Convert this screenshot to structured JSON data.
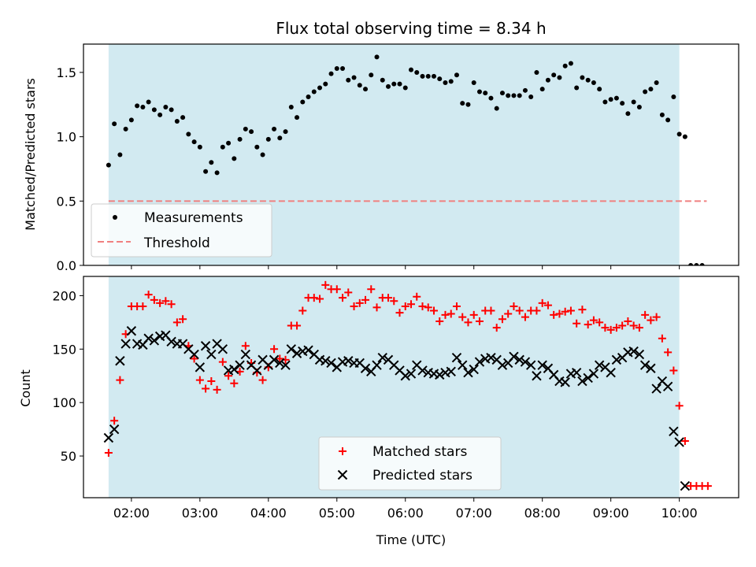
{
  "colors": {
    "band": "#add8e6",
    "measurement": "#000000",
    "threshold": "#f08080",
    "matched": "#ff0000",
    "predicted": "#000000"
  },
  "chart_data": [
    {
      "type": "scatter",
      "title": "Flux total observing time = 8.34 h",
      "xlabel": "",
      "ylabel": "Matched/Predicted stars",
      "xlim": [
        "01:18",
        "10:52"
      ],
      "ylim": [
        0,
        1.72
      ],
      "yticks": [
        0.0,
        0.5,
        1.0,
        1.5
      ],
      "ytick_labels": [
        "0.0",
        "0.5",
        "1.0",
        "1.5"
      ],
      "band": [
        "01:40",
        "10:00"
      ],
      "legend": {
        "placement": "lower-left",
        "entries": [
          "Measurements",
          "Threshold"
        ]
      },
      "threshold": {
        "name": "Threshold",
        "y": 0.5,
        "x": [
          "01:40",
          "10:24"
        ]
      },
      "series": [
        {
          "name": "Measurements",
          "marker": "dot",
          "x": [
            "01:40",
            "01:45",
            "01:50",
            "01:55",
            "02:00",
            "02:05",
            "02:10",
            "02:15",
            "02:20",
            "02:25",
            "02:30",
            "02:35",
            "02:40",
            "02:45",
            "02:50",
            "02:55",
            "03:00",
            "03:05",
            "03:10",
            "03:15",
            "03:20",
            "03:25",
            "03:30",
            "03:35",
            "03:40",
            "03:45",
            "03:50",
            "03:55",
            "04:00",
            "04:05",
            "04:10",
            "04:15",
            "04:20",
            "04:25",
            "04:30",
            "04:35",
            "04:40",
            "04:45",
            "04:50",
            "04:55",
            "05:00",
            "05:05",
            "05:10",
            "05:15",
            "05:20",
            "05:25",
            "05:30",
            "05:35",
            "05:40",
            "05:45",
            "05:50",
            "05:55",
            "06:00",
            "06:05",
            "06:10",
            "06:15",
            "06:20",
            "06:25",
            "06:30",
            "06:35",
            "06:40",
            "06:45",
            "06:50",
            "06:55",
            "07:00",
            "07:05",
            "07:10",
            "07:15",
            "07:20",
            "07:25",
            "07:30",
            "07:35",
            "07:40",
            "07:45",
            "07:50",
            "07:55",
            "08:00",
            "08:05",
            "08:10",
            "08:15",
            "08:20",
            "08:25",
            "08:30",
            "08:35",
            "08:40",
            "08:45",
            "08:50",
            "08:55",
            "09:00",
            "09:05",
            "09:10",
            "09:15",
            "09:20",
            "09:25",
            "09:30",
            "09:35",
            "09:40",
            "09:45",
            "09:50",
            "09:55",
            "10:00",
            "10:05",
            "10:10",
            "10:15",
            "10:20"
          ],
          "y": [
            0.78,
            1.1,
            0.86,
            1.06,
            1.13,
            1.24,
            1.23,
            1.27,
            1.21,
            1.17,
            1.23,
            1.21,
            1.12,
            1.15,
            1.02,
            0.96,
            0.92,
            0.73,
            0.8,
            0.72,
            0.92,
            0.95,
            0.83,
            0.98,
            1.06,
            1.04,
            0.92,
            0.86,
            0.98,
            1.06,
            0.99,
            1.04,
            1.23,
            1.15,
            1.27,
            1.31,
            1.35,
            1.38,
            1.41,
            1.49,
            1.53,
            1.53,
            1.44,
            1.46,
            1.4,
            1.37,
            1.48,
            1.62,
            1.44,
            1.39,
            1.41,
            1.41,
            1.38,
            1.52,
            1.5,
            1.47,
            1.47,
            1.47,
            1.45,
            1.42,
            1.43,
            1.48,
            1.26,
            1.25,
            1.42,
            1.35,
            1.34,
            1.3,
            1.22,
            1.34,
            1.32,
            1.32,
            1.32,
            1.36,
            1.31,
            1.5,
            1.37,
            1.44,
            1.48,
            1.46,
            1.55,
            1.57,
            1.38,
            1.46,
            1.44,
            1.42,
            1.37,
            1.27,
            1.29,
            1.3,
            1.26,
            1.18,
            1.27,
            1.23,
            1.35,
            1.37,
            1.42,
            1.17,
            1.13,
            1.31,
            1.02,
            1.0,
            0.0,
            0.0,
            0.0
          ]
        }
      ]
    },
    {
      "type": "scatter",
      "title": "",
      "xlabel": "Time (UTC)",
      "ylabel": "Count",
      "xlim": [
        "01:18",
        "10:52"
      ],
      "ylim": [
        11,
        218
      ],
      "yticks": [
        50,
        100,
        150,
        200
      ],
      "ytick_labels": [
        "50",
        "100",
        "150",
        "200"
      ],
      "xticks": [
        "02:00",
        "03:00",
        "04:00",
        "05:00",
        "06:00",
        "07:00",
        "08:00",
        "09:00",
        "10:00"
      ],
      "xtick_labels": [
        "02:00",
        "03:00",
        "04:00",
        "05:00",
        "06:00",
        "07:00",
        "08:00",
        "09:00",
        "10:00"
      ],
      "band": [
        "01:40",
        "10:00"
      ],
      "legend": {
        "placement": "lower-center",
        "entries": [
          "Matched stars",
          "Predicted stars"
        ]
      },
      "series": [
        {
          "name": "Matched stars",
          "marker": "plus",
          "x": [
            "01:40",
            "01:45",
            "01:50",
            "01:55",
            "02:00",
            "02:05",
            "02:10",
            "02:15",
            "02:20",
            "02:25",
            "02:30",
            "02:35",
            "02:40",
            "02:45",
            "02:50",
            "02:55",
            "03:00",
            "03:05",
            "03:10",
            "03:15",
            "03:20",
            "03:25",
            "03:30",
            "03:35",
            "03:40",
            "03:45",
            "03:50",
            "03:55",
            "04:00",
            "04:05",
            "04:10",
            "04:15",
            "04:20",
            "04:25",
            "04:30",
            "04:35",
            "04:40",
            "04:45",
            "04:50",
            "04:55",
            "05:00",
            "05:05",
            "05:10",
            "05:15",
            "05:20",
            "05:25",
            "05:30",
            "05:35",
            "05:40",
            "05:45",
            "05:50",
            "05:55",
            "06:00",
            "06:05",
            "06:10",
            "06:15",
            "06:20",
            "06:25",
            "06:30",
            "06:35",
            "06:40",
            "06:45",
            "06:50",
            "06:55",
            "07:00",
            "07:05",
            "07:10",
            "07:15",
            "07:20",
            "07:25",
            "07:30",
            "07:35",
            "07:40",
            "07:45",
            "07:50",
            "07:55",
            "08:00",
            "08:05",
            "08:10",
            "08:15",
            "08:20",
            "08:25",
            "08:30",
            "08:35",
            "08:40",
            "08:45",
            "08:50",
            "08:55",
            "09:00",
            "09:05",
            "09:10",
            "09:15",
            "09:20",
            "09:25",
            "09:30",
            "09:35",
            "09:40",
            "09:45",
            "09:50",
            "09:55",
            "10:00",
            "10:05",
            "10:10",
            "10:15",
            "10:20",
            "10:25"
          ],
          "y": [
            53,
            83,
            121,
            164,
            190,
            190,
            190,
            201,
            196,
            193,
            195,
            192,
            175,
            178,
            153,
            141,
            121,
            113,
            120,
            112,
            138,
            125,
            118,
            129,
            153,
            137,
            128,
            121,
            133,
            150,
            141,
            140,
            172,
            172,
            186,
            198,
            198,
            197,
            210,
            206,
            206,
            198,
            203,
            190,
            193,
            196,
            206,
            189,
            198,
            198,
            195,
            184,
            190,
            192,
            199,
            190,
            189,
            186,
            176,
            182,
            183,
            190,
            180,
            175,
            182,
            176,
            186,
            186,
            170,
            178,
            183,
            190,
            186,
            180,
            186,
            186,
            193,
            191,
            182,
            183,
            185,
            186,
            174,
            187,
            173,
            177,
            175,
            170,
            168,
            170,
            172,
            176,
            172,
            170,
            182,
            177,
            180,
            160,
            147,
            130,
            97,
            64,
            22,
            22,
            22,
            22
          ]
        },
        {
          "name": "Predicted stars",
          "marker": "cross",
          "x": [
            "01:40",
            "01:45",
            "01:50",
            "01:55",
            "02:00",
            "02:05",
            "02:10",
            "02:15",
            "02:20",
            "02:25",
            "02:30",
            "02:35",
            "02:40",
            "02:45",
            "02:50",
            "02:55",
            "03:00",
            "03:05",
            "03:10",
            "03:15",
            "03:20",
            "03:25",
            "03:30",
            "03:35",
            "03:40",
            "03:45",
            "03:50",
            "03:55",
            "04:00",
            "04:05",
            "04:10",
            "04:15",
            "04:20",
            "04:25",
            "04:30",
            "04:35",
            "04:40",
            "04:45",
            "04:50",
            "04:55",
            "05:00",
            "05:05",
            "05:10",
            "05:15",
            "05:20",
            "05:25",
            "05:30",
            "05:35",
            "05:40",
            "05:45",
            "05:50",
            "05:55",
            "06:00",
            "06:05",
            "06:10",
            "06:15",
            "06:20",
            "06:25",
            "06:30",
            "06:35",
            "06:40",
            "06:45",
            "06:50",
            "06:55",
            "07:00",
            "07:05",
            "07:10",
            "07:15",
            "07:20",
            "07:25",
            "07:30",
            "07:35",
            "07:40",
            "07:45",
            "07:50",
            "07:55",
            "08:00",
            "08:05",
            "08:10",
            "08:15",
            "08:20",
            "08:25",
            "08:30",
            "08:35",
            "08:40",
            "08:45",
            "08:50",
            "08:55",
            "09:00",
            "09:05",
            "09:10",
            "09:15",
            "09:20",
            "09:25",
            "09:30",
            "09:35",
            "09:40",
            "09:45",
            "09:50",
            "09:55",
            "10:00",
            "10:05"
          ],
          "y": [
            67,
            75,
            139,
            155,
            167,
            155,
            154,
            160,
            158,
            162,
            163,
            157,
            155,
            155,
            150,
            145,
            133,
            153,
            145,
            155,
            150,
            130,
            131,
            135,
            145,
            135,
            130,
            140,
            135,
            140,
            137,
            135,
            150,
            146,
            148,
            149,
            145,
            140,
            139,
            137,
            133,
            138,
            139,
            137,
            137,
            132,
            129,
            135,
            142,
            140,
            135,
            130,
            125,
            127,
            135,
            130,
            128,
            127,
            126,
            128,
            129,
            142,
            135,
            128,
            131,
            138,
            141,
            142,
            140,
            135,
            137,
            143,
            140,
            138,
            135,
            125,
            135,
            132,
            126,
            120,
            119,
            127,
            128,
            120,
            123,
            127,
            135,
            133,
            128,
            140,
            142,
            147,
            148,
            145,
            135,
            132,
            113,
            120,
            115,
            73,
            63,
            22
          ]
        }
      ]
    }
  ]
}
